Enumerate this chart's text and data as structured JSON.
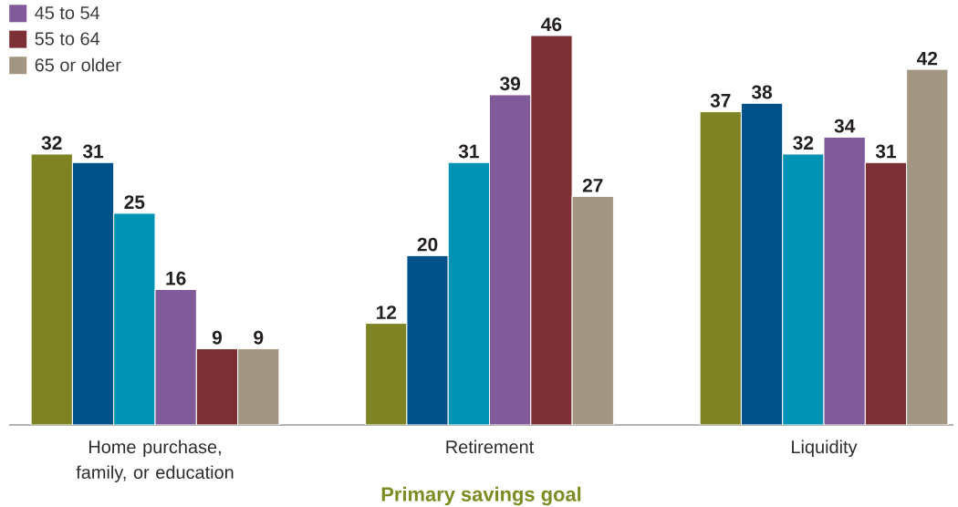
{
  "chart_data": {
    "type": "bar",
    "categories": [
      "Home purchase, family, or education",
      "Retirement",
      "Liquidity"
    ],
    "xlabel": "Primary savings goal",
    "series": [
      {
        "color": "#7e8423",
        "values": [
          32,
          12,
          37
        ]
      },
      {
        "color": "#005288",
        "values": [
          31,
          20,
          38
        ]
      },
      {
        "color": "#0093b3",
        "values": [
          25,
          31,
          32
        ]
      },
      {
        "name": "45 to 54",
        "color": "#805a99",
        "values": [
          16,
          39,
          34
        ]
      },
      {
        "name": "55 to 64",
        "color": "#7c2f35",
        "values": [
          9,
          46,
          31
        ]
      },
      {
        "name": "65 or older",
        "color": "#a29581",
        "values": [
          9,
          27,
          42
        ]
      }
    ],
    "data_labels": true,
    "legend": "top left"
  }
}
